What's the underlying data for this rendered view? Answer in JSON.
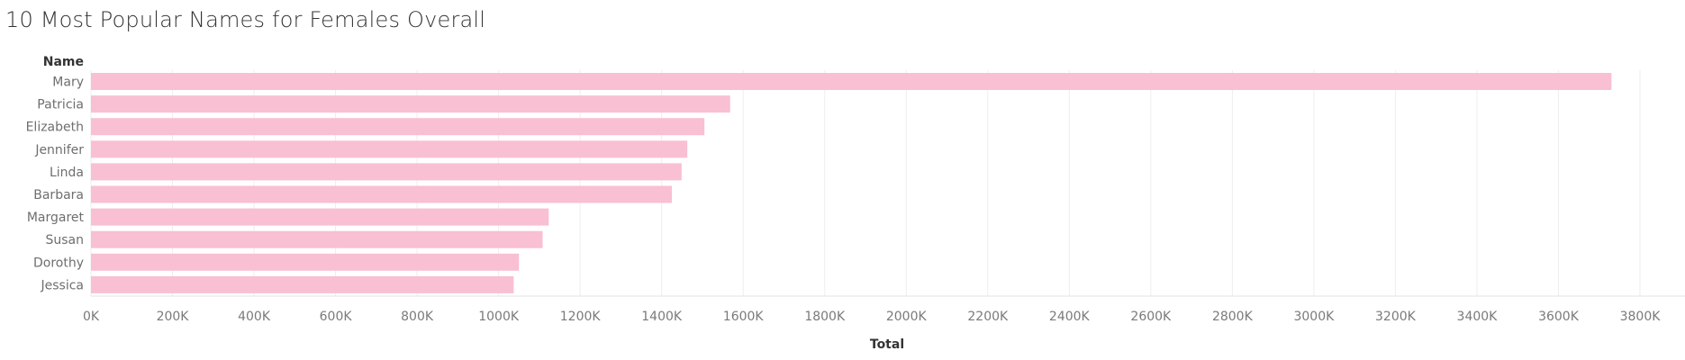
{
  "chart_data": {
    "type": "bar",
    "orientation": "horizontal",
    "title": "10 Most Popular Names for Females Overall",
    "ylabel": "Name",
    "xlabel": "Total",
    "categories": [
      "Mary",
      "Patricia",
      "Elizabeth",
      "Jennifer",
      "Linda",
      "Barbara",
      "Margaret",
      "Susan",
      "Dorothy",
      "Jessica"
    ],
    "values": [
      3730000,
      1568000,
      1505000,
      1463000,
      1449000,
      1425000,
      1123000,
      1108000,
      1050000,
      1037000
    ],
    "xlim": [
      0,
      3800000
    ],
    "xticks": [
      0,
      200000,
      400000,
      600000,
      800000,
      1000000,
      1200000,
      1400000,
      1600000,
      1800000,
      2000000,
      2200000,
      2400000,
      2600000,
      2800000,
      3000000,
      3200000,
      3400000,
      3600000,
      3800000
    ],
    "xtick_labels": [
      "0K",
      "200K",
      "400K",
      "600K",
      "800K",
      "1000K",
      "1200K",
      "1400K",
      "1600K",
      "1800K",
      "2000K",
      "2200K",
      "2400K",
      "2600K",
      "2800K",
      "3000K",
      "3200K",
      "3400K",
      "3600K",
      "3800K"
    ],
    "grid": true,
    "bar_color": "#f9bfd3"
  }
}
